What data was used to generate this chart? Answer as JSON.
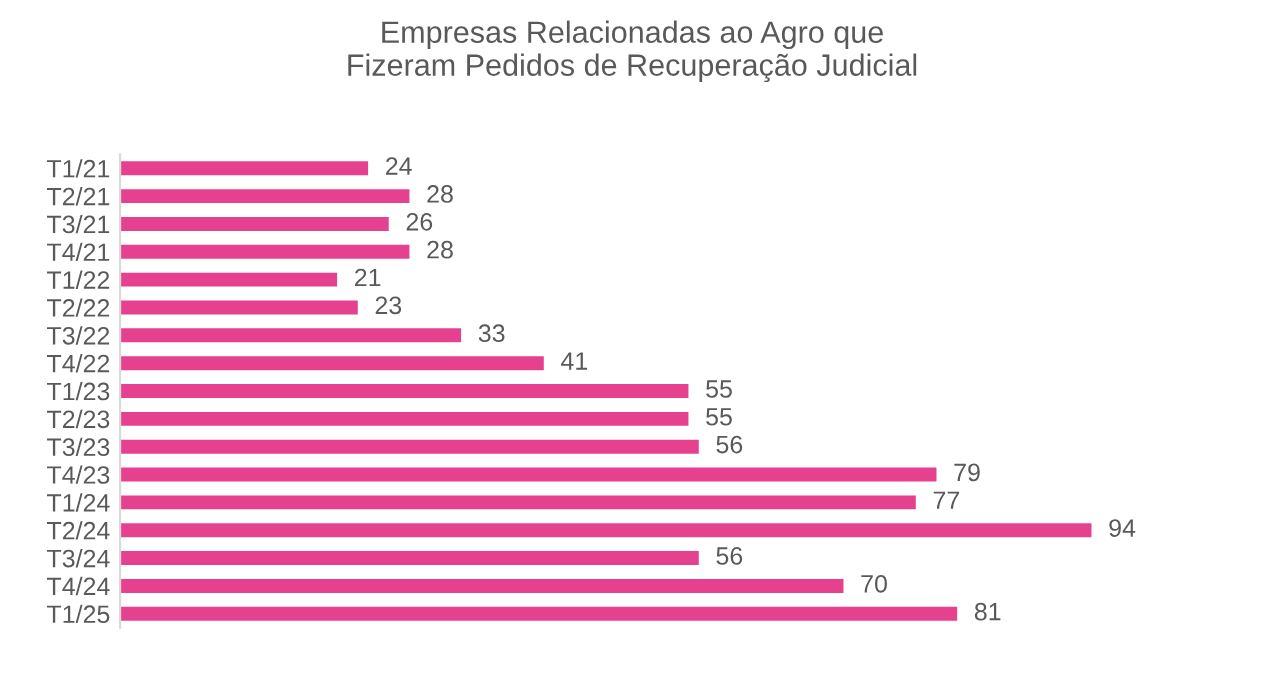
{
  "chart_data": {
    "type": "bar",
    "orientation": "horizontal",
    "title": "Empresas Relacionadas ao Agro que\nFizeram Pedidos de Recuperação Judicial",
    "categories": [
      "T1/21",
      "T2/21",
      "T3/21",
      "T4/21",
      "T1/22",
      "T2/22",
      "T3/22",
      "T4/22",
      "T1/23",
      "T2/23",
      "T3/23",
      "T4/23",
      "T1/24",
      "T2/24",
      "T3/24",
      "T4/24",
      "T1/25"
    ],
    "values": [
      24,
      28,
      26,
      28,
      21,
      23,
      33,
      41,
      55,
      55,
      56,
      79,
      77,
      94,
      56,
      70,
      81
    ],
    "color": "#e6418e",
    "data_labels": true,
    "grid": false,
    "legend": false,
    "tick_labels": "y"
  }
}
